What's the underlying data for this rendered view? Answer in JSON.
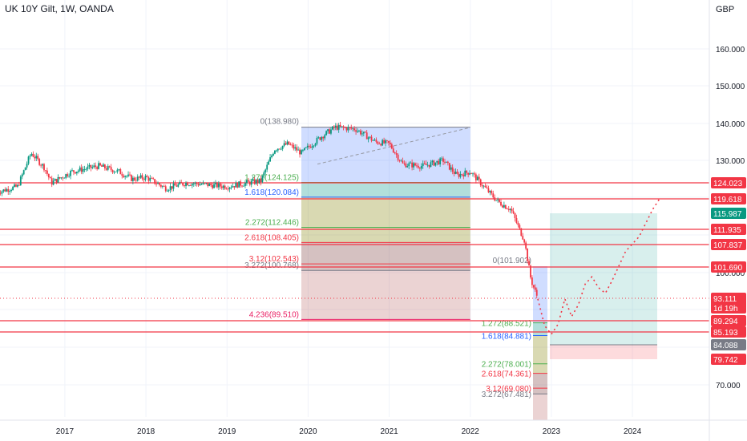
{
  "header": {
    "symbol_title": "UK 10Y Gilt, 1W, OANDA",
    "currency": "GBP"
  },
  "chart_data": {
    "type": "candlestick",
    "title": "UK 10Y Gilt, 1W, OANDA",
    "y_axis_unit": "GBP",
    "y_ticks": [
      "160.000",
      "150.000",
      "140.000",
      "130.000",
      "100.000",
      "70.000"
    ],
    "x_ticks": [
      "2017",
      "2018",
      "2019",
      "2020",
      "2021",
      "2022",
      "2023",
      "2024"
    ],
    "x_range": [
      "2016-03",
      "2024-10"
    ],
    "y_range": [
      61,
      168
    ],
    "price_path": [
      [
        "2016-03",
        121.5
      ],
      [
        "2016-06",
        123
      ],
      [
        "2016-08",
        132
      ],
      [
        "2016-10",
        128
      ],
      [
        "2016-11",
        124
      ],
      [
        "2017-02",
        127
      ],
      [
        "2017-06",
        128.5
      ],
      [
        "2017-09",
        127
      ],
      [
        "2017-11",
        125
      ],
      [
        "2018-01",
        125.5
      ],
      [
        "2018-04",
        122.5
      ],
      [
        "2018-07",
        124
      ],
      [
        "2018-10",
        123.5
      ],
      [
        "2019-01",
        123
      ],
      [
        "2019-04",
        124
      ],
      [
        "2019-06",
        124.5
      ],
      [
        "2019-08",
        133
      ],
      [
        "2019-10",
        134.5
      ],
      [
        "2019-12",
        132
      ],
      [
        "2020-03",
        136.5
      ],
      [
        "2020-05",
        139
      ],
      [
        "2020-08",
        138.5
      ],
      [
        "2020-11",
        135
      ],
      [
        "2021-01",
        134.5
      ],
      [
        "2021-03",
        129
      ],
      [
        "2021-06",
        128.5
      ],
      [
        "2021-09",
        130
      ],
      [
        "2021-11",
        126
      ],
      [
        "2022-01",
        127
      ],
      [
        "2022-03",
        123
      ],
      [
        "2022-05",
        119
      ],
      [
        "2022-07",
        117
      ],
      [
        "2022-09",
        109
      ],
      [
        "2022-10",
        98
      ],
      [
        "2022-11",
        93.1
      ]
    ],
    "projection_path": [
      [
        "2022-11",
        93
      ],
      [
        "2022-12",
        87.5
      ],
      [
        "2023-01",
        85
      ],
      [
        "2023-02",
        88
      ],
      [
        "2023-03",
        93
      ],
      [
        "2023-04",
        90
      ],
      [
        "2023-05",
        92
      ],
      [
        "2023-06",
        97
      ],
      [
        "2023-07",
        99
      ],
      [
        "2023-08",
        96
      ],
      [
        "2023-09",
        94.5
      ],
      [
        "2023-10",
        98
      ],
      [
        "2023-12",
        106
      ],
      [
        "2024-02",
        110
      ],
      [
        "2024-04",
        117
      ],
      [
        "2024-05",
        119.6
      ]
    ],
    "horizontal_levels": [
      124.023,
      119.618,
      111.935,
      107.837,
      101.69,
      89.294,
      85.193
    ],
    "price_labels": [
      {
        "value": 124.023,
        "text": "124.023",
        "color": "#f23645"
      },
      {
        "value": 119.618,
        "text": "119.618",
        "color": "#f23645"
      },
      {
        "value": 115.987,
        "text": "115.987",
        "color": "#089981"
      },
      {
        "value": 111.935,
        "text": "111.935",
        "color": "#f23645"
      },
      {
        "value": 107.837,
        "text": "107.837",
        "color": "#f23645"
      },
      {
        "value": 101.69,
        "text": "101.690",
        "color": "#f23645"
      },
      {
        "value": 93.111,
        "text": "93.111",
        "color": "#f23645",
        "subtext": "1d 19h"
      },
      {
        "value": 89.294,
        "text": "89.294",
        "color": "#f23645"
      },
      {
        "value": 85.193,
        "text": "85.193",
        "color": "#f23645"
      },
      {
        "value": 84.088,
        "text": "84.088",
        "color": "#787b86"
      },
      {
        "value": 79.742,
        "text": "79.742",
        "color": "#f23645"
      }
    ],
    "fib_left": {
      "x_start": "2019-12",
      "x_end": "2022-01",
      "zero_label": "0(138.980)",
      "levels": [
        {
          "value": 124.125,
          "label": "1.272(124.125)",
          "color": "#4caf50"
        },
        {
          "value": 120.084,
          "label": "1.618(120.084)",
          "color": "#2962ff"
        },
        {
          "value": 112.446,
          "label": "2.272(112.446)",
          "color": "#4caf50"
        },
        {
          "value": 108.405,
          "label": "2.618(108.405)",
          "color": "#f23645"
        },
        {
          "value": 102.543,
          "label": "3.12(102.543)",
          "color": "#f23645"
        },
        {
          "value": 100.768,
          "label": "3.272(100.768)",
          "color": "#787b86"
        },
        {
          "value": 89.51,
          "label": "4.236(89.510)",
          "color": "#e91e63"
        }
      ]
    },
    "fib_right": {
      "x_start": "2022-09",
      "x_end": "2022-11",
      "zero_label": "0(101.902)",
      "levels": [
        {
          "value": 88.521,
          "label": "1.272(88.521)",
          "color": "#4caf50"
        },
        {
          "value": 84.881,
          "label": "1.618(84.881)",
          "color": "#2962ff"
        },
        {
          "value": 78.001,
          "label": "2.272(78.001)",
          "color": "#4caf50"
        },
        {
          "value": 74.361,
          "label": "2.618(74.361)",
          "color": "#f23645"
        },
        {
          "value": 69.08,
          "label": "3.12(69.080)",
          "color": "#f23645"
        },
        {
          "value": 67.481,
          "label": "3.272(67.481)",
          "color": "#787b86"
        }
      ]
    },
    "long_position": {
      "x_start": "2023-01",
      "x_end": "2024-04",
      "entry": 84.088,
      "target": 115.987,
      "stop": 79.742
    },
    "colors": {
      "up": "#089981",
      "down": "#f23645",
      "level_line": "#f23645",
      "fib_fill": "#2962ff",
      "profit_zone": "#26a69a",
      "loss_zone": "#f23645"
    }
  }
}
